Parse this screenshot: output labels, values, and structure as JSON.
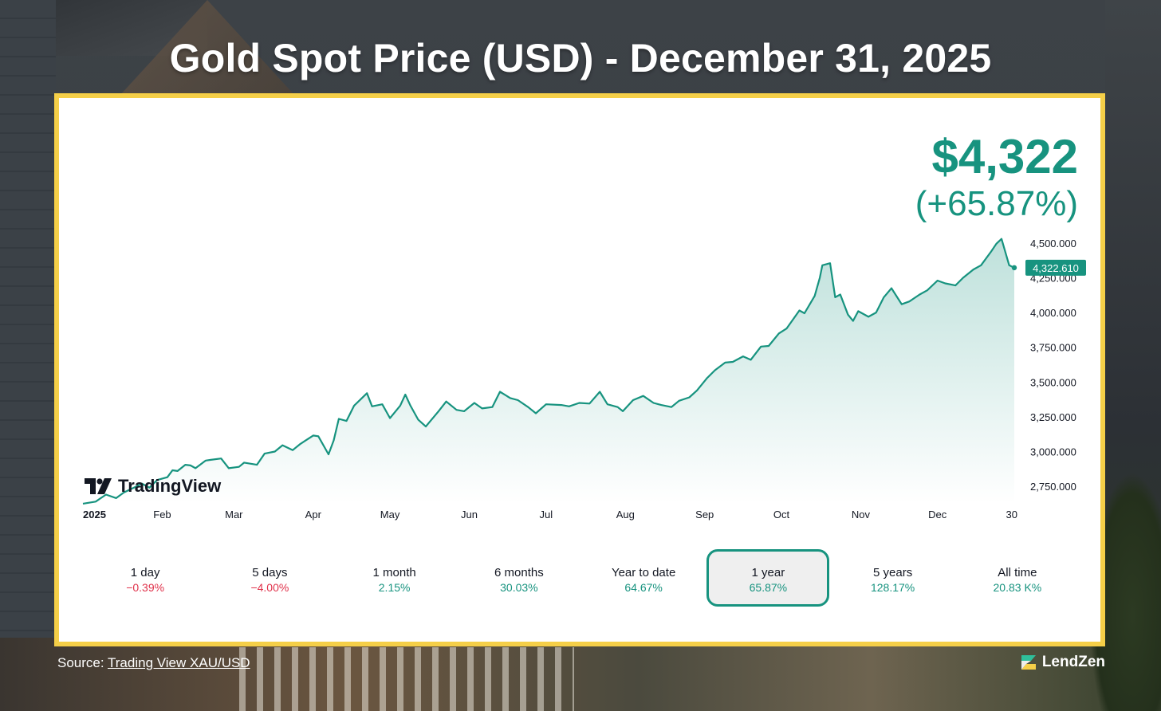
{
  "title": "Gold Spot Price (USD) - December 31, 2025",
  "headline": {
    "price": "$4,322",
    "change": "(+65.87%)"
  },
  "tv_brand": "TradingView",
  "source": {
    "prefix": "Source:",
    "link": "Trading View XAU/USD"
  },
  "brand": "LendZen",
  "colors": {
    "accent": "#17937f",
    "negative": "#e0324b",
    "frame": "#f5cf48"
  },
  "periods": [
    {
      "label": "1 day",
      "value": "−0.39%",
      "trend": "neg",
      "active": false
    },
    {
      "label": "5 days",
      "value": "−4.00%",
      "trend": "neg",
      "active": false
    },
    {
      "label": "1 month",
      "value": "2.15%",
      "trend": "pos",
      "active": false
    },
    {
      "label": "6 months",
      "value": "30.03%",
      "trend": "pos",
      "active": false
    },
    {
      "label": "Year to date",
      "value": "64.67%",
      "trend": "pos",
      "active": false
    },
    {
      "label": "1 year",
      "value": "65.87%",
      "trend": "pos",
      "active": true
    },
    {
      "label": "5 years",
      "value": "128.17%",
      "trend": "pos",
      "active": false
    },
    {
      "label": "All time",
      "value": "20.83 K%",
      "trend": "pos",
      "active": false
    }
  ],
  "chart_data": {
    "type": "area",
    "title": "Gold Spot Price (USD) - December 31, 2025",
    "xlabel": "",
    "ylabel": "",
    "ylim": [
      2630,
      4580
    ],
    "xlim": [
      "2025-01-01",
      "2025-12-31"
    ],
    "x_ticks": [
      {
        "label": "2025",
        "x": "2025-01-01"
      },
      {
        "label": "Feb",
        "x": "2025-02-01"
      },
      {
        "label": "Mar",
        "x": "2025-03-01"
      },
      {
        "label": "Apr",
        "x": "2025-04-01"
      },
      {
        "label": "May",
        "x": "2025-05-01"
      },
      {
        "label": "Jun",
        "x": "2025-06-01"
      },
      {
        "label": "Jul",
        "x": "2025-07-01"
      },
      {
        "label": "Aug",
        "x": "2025-08-01"
      },
      {
        "label": "Sep",
        "x": "2025-09-01"
      },
      {
        "label": "Oct",
        "x": "2025-10-01"
      },
      {
        "label": "Nov",
        "x": "2025-11-01"
      },
      {
        "label": "Dec",
        "x": "2025-12-01"
      },
      {
        "label": "30",
        "x": "2025-12-30"
      }
    ],
    "y_ticks": [
      {
        "value": 2750,
        "label": "2,750.000"
      },
      {
        "value": 3000,
        "label": "3,000.000"
      },
      {
        "value": 3250,
        "label": "3,250.000"
      },
      {
        "value": 3500,
        "label": "3,500.000"
      },
      {
        "value": 3750,
        "label": "3,750.000"
      },
      {
        "value": 4000,
        "label": "4,000.000"
      },
      {
        "value": 4250,
        "label": "4,250.000"
      },
      {
        "value": 4500,
        "label": "4,500.000"
      }
    ],
    "last_value": 4322.61,
    "last_value_label": "4,322.610",
    "grid": false,
    "series": [
      {
        "name": "XAU/USD",
        "color": "#17937f",
        "points": [
          [
            "2025-01-01",
            2625
          ],
          [
            "2025-01-06",
            2640
          ],
          [
            "2025-01-10",
            2690
          ],
          [
            "2025-01-14",
            2665
          ],
          [
            "2025-01-17",
            2705
          ],
          [
            "2025-01-22",
            2750
          ],
          [
            "2025-01-24",
            2770
          ],
          [
            "2025-01-27",
            2740
          ],
          [
            "2025-01-30",
            2795
          ],
          [
            "2025-02-03",
            2815
          ],
          [
            "2025-02-05",
            2865
          ],
          [
            "2025-02-07",
            2860
          ],
          [
            "2025-02-10",
            2905
          ],
          [
            "2025-02-12",
            2900
          ],
          [
            "2025-02-14",
            2880
          ],
          [
            "2025-02-18",
            2935
          ],
          [
            "2025-02-20",
            2940
          ],
          [
            "2025-02-24",
            2950
          ],
          [
            "2025-02-27",
            2880
          ],
          [
            "2025-03-03",
            2890
          ],
          [
            "2025-03-05",
            2920
          ],
          [
            "2025-03-10",
            2905
          ],
          [
            "2025-03-13",
            2985
          ],
          [
            "2025-03-17",
            3000
          ],
          [
            "2025-03-20",
            3045
          ],
          [
            "2025-03-24",
            3010
          ],
          [
            "2025-03-27",
            3055
          ],
          [
            "2025-04-01",
            3115
          ],
          [
            "2025-04-03",
            3110
          ],
          [
            "2025-04-07",
            2980
          ],
          [
            "2025-04-09",
            3080
          ],
          [
            "2025-04-11",
            3235
          ],
          [
            "2025-04-14",
            3220
          ],
          [
            "2025-04-17",
            3330
          ],
          [
            "2025-04-22",
            3420
          ],
          [
            "2025-04-24",
            3325
          ],
          [
            "2025-04-28",
            3340
          ],
          [
            "2025-05-01",
            3240
          ],
          [
            "2025-05-05",
            3330
          ],
          [
            "2025-05-07",
            3410
          ],
          [
            "2025-05-09",
            3330
          ],
          [
            "2025-05-12",
            3230
          ],
          [
            "2025-05-15",
            3180
          ],
          [
            "2025-05-20",
            3290
          ],
          [
            "2025-05-23",
            3360
          ],
          [
            "2025-05-27",
            3300
          ],
          [
            "2025-05-30",
            3290
          ],
          [
            "2025-06-03",
            3350
          ],
          [
            "2025-06-06",
            3310
          ],
          [
            "2025-06-10",
            3320
          ],
          [
            "2025-06-13",
            3430
          ],
          [
            "2025-06-17",
            3385
          ],
          [
            "2025-06-20",
            3370
          ],
          [
            "2025-06-24",
            3320
          ],
          [
            "2025-06-27",
            3275
          ],
          [
            "2025-07-01",
            3340
          ],
          [
            "2025-07-07",
            3335
          ],
          [
            "2025-07-10",
            3325
          ],
          [
            "2025-07-14",
            3350
          ],
          [
            "2025-07-18",
            3345
          ],
          [
            "2025-07-22",
            3430
          ],
          [
            "2025-07-25",
            3340
          ],
          [
            "2025-07-29",
            3320
          ],
          [
            "2025-07-31",
            3290
          ],
          [
            "2025-08-04",
            3370
          ],
          [
            "2025-08-08",
            3400
          ],
          [
            "2025-08-12",
            3350
          ],
          [
            "2025-08-15",
            3335
          ],
          [
            "2025-08-19",
            3320
          ],
          [
            "2025-08-22",
            3365
          ],
          [
            "2025-08-26",
            3390
          ],
          [
            "2025-08-29",
            3440
          ],
          [
            "2025-09-02",
            3530
          ],
          [
            "2025-09-05",
            3585
          ],
          [
            "2025-09-09",
            3640
          ],
          [
            "2025-09-12",
            3645
          ],
          [
            "2025-09-16",
            3685
          ],
          [
            "2025-09-19",
            3660
          ],
          [
            "2025-09-23",
            3755
          ],
          [
            "2025-09-26",
            3760
          ],
          [
            "2025-09-30",
            3850
          ],
          [
            "2025-10-03",
            3885
          ],
          [
            "2025-10-08",
            4015
          ],
          [
            "2025-10-10",
            3995
          ],
          [
            "2025-10-14",
            4120
          ],
          [
            "2025-10-16",
            4250
          ],
          [
            "2025-10-17",
            4340
          ],
          [
            "2025-10-20",
            4355
          ],
          [
            "2025-10-22",
            4110
          ],
          [
            "2025-10-24",
            4130
          ],
          [
            "2025-10-27",
            3985
          ],
          [
            "2025-10-29",
            3940
          ],
          [
            "2025-10-31",
            4010
          ],
          [
            "2025-11-04",
            3970
          ],
          [
            "2025-11-07",
            4000
          ],
          [
            "2025-11-10",
            4110
          ],
          [
            "2025-11-13",
            4175
          ],
          [
            "2025-11-17",
            4060
          ],
          [
            "2025-11-20",
            4080
          ],
          [
            "2025-11-24",
            4130
          ],
          [
            "2025-11-27",
            4160
          ],
          [
            "2025-12-01",
            4230
          ],
          [
            "2025-12-04",
            4210
          ],
          [
            "2025-12-08",
            4195
          ],
          [
            "2025-12-11",
            4250
          ],
          [
            "2025-12-15",
            4310
          ],
          [
            "2025-12-18",
            4340
          ],
          [
            "2025-12-22",
            4440
          ],
          [
            "2025-12-24",
            4495
          ],
          [
            "2025-12-26",
            4530
          ],
          [
            "2025-12-29",
            4340
          ],
          [
            "2025-12-31",
            4322.61
          ]
        ]
      }
    ]
  }
}
